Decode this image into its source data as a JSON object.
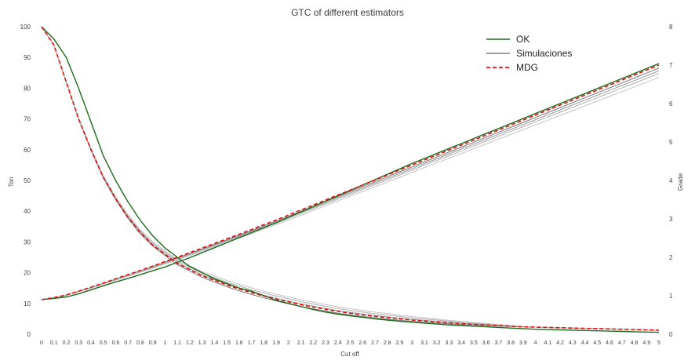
{
  "chart_data": {
    "type": "line",
    "title": "GTC of different estimators",
    "xlabel": "Cut off",
    "ylabel": "Ton",
    "y2label": "Grade",
    "ylim": [
      0,
      100
    ],
    "y2lim": [
      0,
      8
    ],
    "yticks": [
      "0",
      "10",
      "20",
      "30",
      "40",
      "50",
      "60",
      "70",
      "80",
      "90",
      "100"
    ],
    "y2ticks": [
      "0",
      "1",
      "2",
      "3",
      "4",
      "5",
      "6",
      "7",
      "8"
    ],
    "x": [
      "0",
      "0.1",
      "0.2",
      "0.3",
      "0.4",
      "0.5",
      "0.6",
      "0.7",
      "0.8",
      "0.9",
      "1",
      "1.1",
      "1.2",
      "1.3",
      "1.4",
      "1.5",
      "1.6",
      "1.7",
      "1.8",
      "1.9",
      "2",
      "2.1",
      "2.2",
      "2.3",
      "2.4",
      "2.5",
      "2.6",
      "2.7",
      "2.8",
      "2.9",
      "3",
      "3.1",
      "3.2",
      "3.3",
      "3.4",
      "3.5",
      "3.6",
      "3.7",
      "3.8",
      "3.9",
      "4",
      "4.1",
      "4.2",
      "4.3",
      "4.4",
      "4.5",
      "4.6",
      "4.7",
      "4.8",
      "4.9",
      "5"
    ],
    "grid": false,
    "legend_position": "top-right",
    "legend": [
      {
        "label": "OK",
        "color": "#1e6b1e",
        "style": "solid"
      },
      {
        "label": "Simulaciones",
        "color": "#808080",
        "style": "solid"
      },
      {
        "label": "MDG",
        "color": "#e01010",
        "style": "dashed"
      }
    ],
    "series": [
      {
        "legend": "OK",
        "axis": "left",
        "color": "#1e6b1e",
        "dash": false,
        "width": 1.4,
        "values": [
          100,
          96,
          90,
          80,
          69,
          58,
          50,
          43,
          37,
          32,
          28,
          25,
          22,
          20,
          18,
          16.5,
          15,
          14,
          12.5,
          11,
          10,
          9,
          8,
          7.2,
          6.5,
          6,
          5.5,
          5,
          4.6,
          4.2,
          3.9,
          3.6,
          3.3,
          3,
          2.8,
          2.6,
          2.4,
          2.2,
          2,
          1.8,
          1.6,
          1.5,
          1.4,
          1.3,
          1.2,
          1.1,
          1,
          0.9,
          0.8,
          0.7,
          0.6
        ]
      },
      {
        "legend": "OK",
        "axis": "right",
        "color": "#1e6b1e",
        "dash": false,
        "width": 1.4,
        "values": [
          0.9,
          0.93,
          0.97,
          1.05,
          1.15,
          1.26,
          1.36,
          1.45,
          1.55,
          1.65,
          1.75,
          1.87,
          1.99,
          2.12,
          2.25,
          2.38,
          2.51,
          2.64,
          2.77,
          2.9,
          3.04,
          3.18,
          3.32,
          3.46,
          3.6,
          3.74,
          3.88,
          4.02,
          4.16,
          4.3,
          4.44,
          4.57,
          4.7,
          4.83,
          4.96,
          5.09,
          5.22,
          5.35,
          5.48,
          5.61,
          5.74,
          5.87,
          6,
          6.13,
          6.26,
          6.39,
          6.52,
          6.65,
          6.78,
          6.91,
          7.04
        ]
      },
      {
        "legend": "MDG",
        "axis": "left",
        "color": "#e01010",
        "dash": true,
        "width": 1.6,
        "values": [
          100,
          94,
          82,
          70,
          60,
          51,
          44,
          38,
          33,
          29,
          26,
          23,
          21,
          19,
          17.5,
          16,
          14.7,
          13.5,
          12.4,
          11.4,
          10.5,
          9.6,
          8.8,
          8.1,
          7.4,
          6.8,
          6.3,
          5.8,
          5.4,
          5,
          4.6,
          4.3,
          4,
          3.7,
          3.4,
          3.2,
          3,
          2.8,
          2.6,
          2.4,
          2.3,
          2.2,
          2.1,
          2,
          1.9,
          1.8,
          1.7,
          1.6,
          1.5,
          1.4,
          1.3
        ]
      },
      {
        "legend": "MDG",
        "axis": "right",
        "color": "#e01010",
        "dash": true,
        "width": 1.6,
        "values": [
          0.9,
          0.95,
          1.02,
          1.12,
          1.22,
          1.33,
          1.44,
          1.55,
          1.66,
          1.77,
          1.89,
          2,
          2.12,
          2.24,
          2.36,
          2.48,
          2.6,
          2.72,
          2.85,
          2.97,
          3.1,
          3.23,
          3.36,
          3.49,
          3.62,
          3.75,
          3.88,
          4.01,
          4.14,
          4.27,
          4.4,
          4.53,
          4.66,
          4.79,
          4.92,
          5.05,
          5.18,
          5.31,
          5.44,
          5.57,
          5.7,
          5.83,
          5.96,
          6.09,
          6.22,
          6.35,
          6.48,
          6.61,
          6.74,
          6.87,
          7.0
        ]
      }
    ],
    "simulation_envelope": {
      "legend": "Simulaciones",
      "colors": [
        "#7a7a7a",
        "#9a9a9a",
        "#b0b0b0",
        "#c4c4c4"
      ],
      "tonnage_offsets": [
        -0.6,
        0.3,
        1.0,
        1.6
      ],
      "grade_offsets": [
        -0.08,
        -0.15,
        -0.22,
        -0.32
      ]
    }
  }
}
